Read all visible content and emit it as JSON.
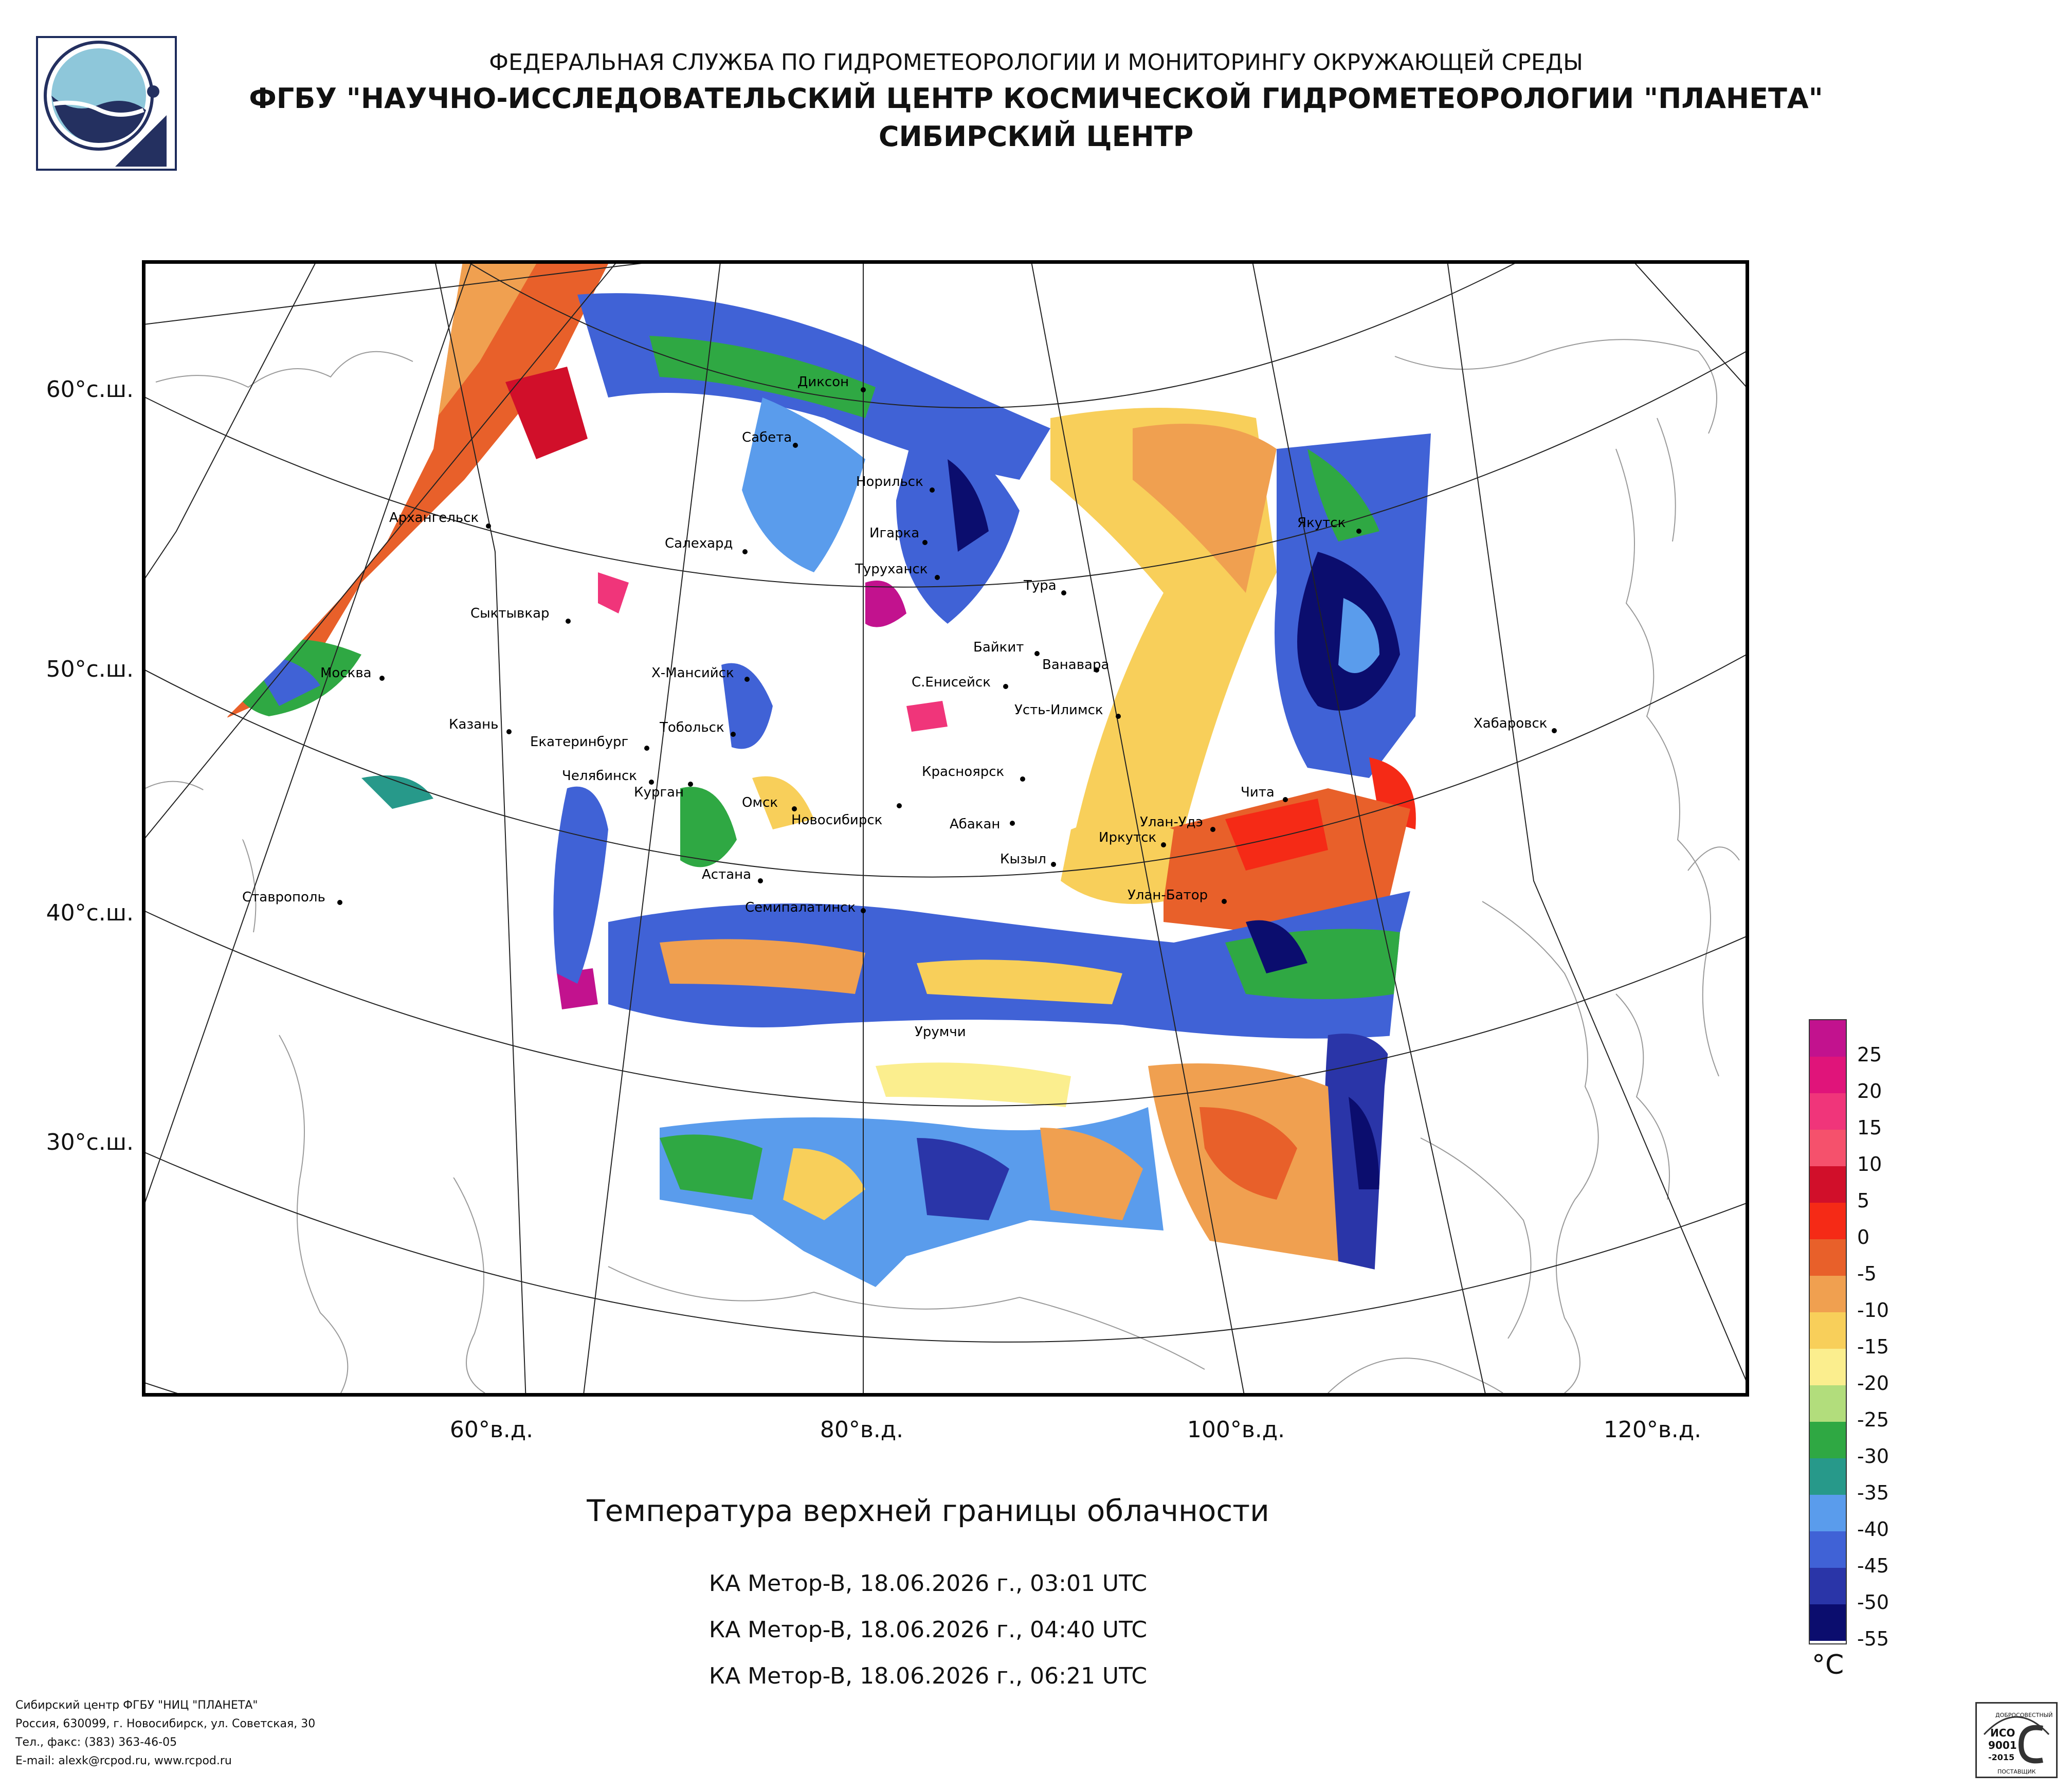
{
  "header": {
    "line1": "ФЕДЕРАЛЬНАЯ СЛУЖБА ПО ГИДРОМЕТЕОРОЛОГИИ И МОНИТОРИНГУ ОКРУЖАЮЩЕЙ СРЕДЫ",
    "line2": "ФГБУ \"НАУЧНО-ИССЛЕДОВАТЕЛЬСКИЙ ЦЕНТР КОСМИЧЕСКОЙ ГИДРОМЕТЕОРОЛОГИИ \"ПЛАНЕТА\"",
    "line3": "СИБИРСКИЙ ЦЕНТР"
  },
  "map": {
    "lat_labels": [
      "60°с.ш.",
      "50°с.ш.",
      "40°с.ш.",
      "30°с.ш."
    ],
    "lon_labels": [
      "60°в.д.",
      "80°в.д.",
      "100°в.д.",
      "120°в.д."
    ],
    "cities": [
      "Диксон",
      "Сабета",
      "Норильск",
      "Архангельск",
      "Игарка",
      "Салехард",
      "Туруханск",
      "Якутск",
      "Тура",
      "Сыктывкар",
      "Байкит",
      "Ванавара",
      "Москва",
      "Х-Мансийск",
      "С.Енисейск",
      "Усть-Илимск",
      "Казань",
      "Тобольск",
      "Екатеринбург",
      "Хабаровск",
      "Челябинск",
      "Курган",
      "Красноярск",
      "Чита",
      "Омск",
      "Новосибирск",
      "Абакан",
      "Улан-Удэ",
      "Иркутск",
      "Кызыл",
      "Астана",
      "Ставрополь",
      "Улан-Батор",
      "Семипалатинск",
      "Урумчи"
    ]
  },
  "title": "Температура верхней границы облачности",
  "passes": [
    "КА Meтop-B, 18.06.2026 г., 03:01 UTC",
    "КА Meтop-B, 18.06.2026 г., 04:40 UTC",
    "КА Meтop-B, 18.06.2026 г., 06:21 UTC"
  ],
  "legend": {
    "unit": "°C",
    "colors": [
      "#c2128e",
      "#e0147a",
      "#f0357a",
      "#f5516c",
      "#d10f2a",
      "#f52a16",
      "#e8602a",
      "#f0a050",
      "#f8cf5a",
      "#fbee8e",
      "#b2dd7c",
      "#2fa843",
      "#27998a",
      "#5a9cec",
      "#4062d6",
      "#2a35a8",
      "#0b0d6e"
    ],
    "labels": [
      "25",
      "20",
      "15",
      "10",
      "5",
      "0",
      "-5",
      "-10",
      "-15",
      "-20",
      "-25",
      "-30",
      "-35",
      "-40",
      "-45",
      "-50",
      "-55"
    ]
  },
  "footer": {
    "line1": "Сибирский центр ФГБУ \"НИЦ \"ПЛАНЕТА\"",
    "line2": "Россия, 630099, г. Новосибирск, ул. Советская, 30",
    "line3": "Тел., факс: (383) 363-46-05",
    "line4": "E-mail: alexk@rcpod.ru, www.rcpod.ru"
  },
  "cert": {
    "arc": "ДОБРОСОВЕСТНЫЙ",
    "iso1": "ИСО",
    "iso2": "9001",
    "iso3": "-2015",
    "bottom": "ПОСТАВЩИК"
  }
}
